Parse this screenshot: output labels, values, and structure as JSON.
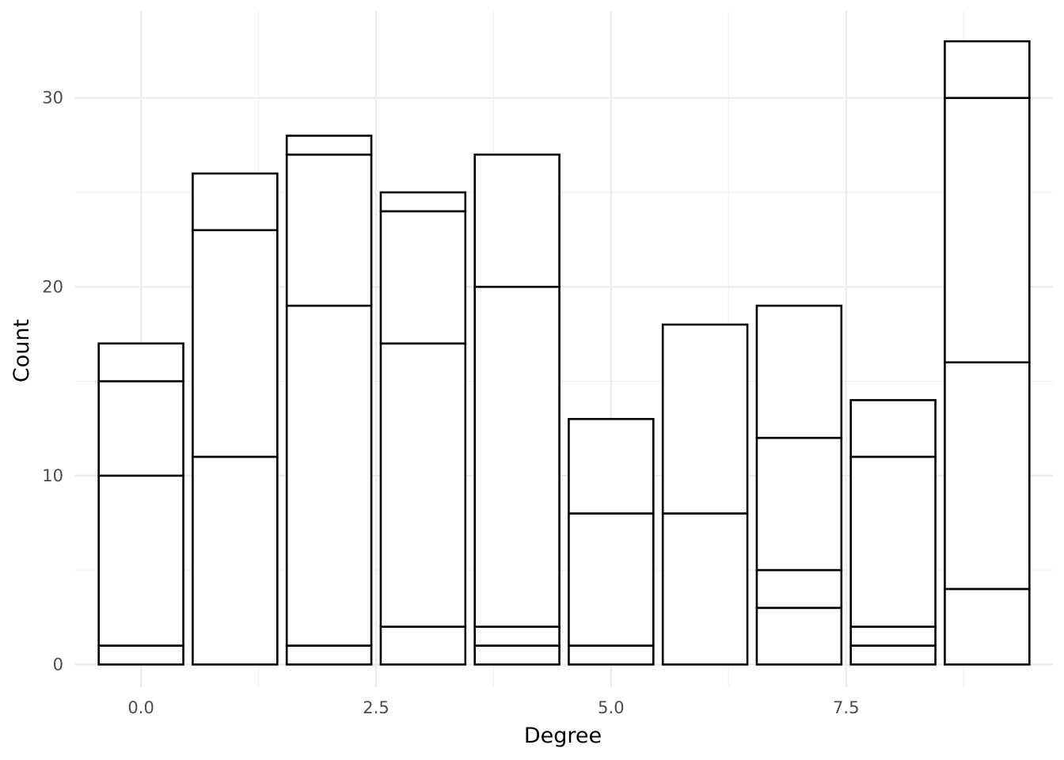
{
  "chart_data": {
    "type": "bar",
    "stacked": true,
    "xlabel": "Degree",
    "ylabel": "Count",
    "xlim": [
      -0.7,
      9.7
    ],
    "ylim": [
      -1.2,
      34.6
    ],
    "x_ticks": [
      0.0,
      2.5,
      5.0,
      7.5
    ],
    "x_tick_labels": [
      "0.0",
      "2.5",
      "5.0",
      "7.5"
    ],
    "y_ticks": [
      0,
      10,
      20,
      30
    ],
    "y_tick_labels": [
      "0",
      "10",
      "20",
      "30"
    ],
    "grid": true,
    "bar_fill": "#ffffff",
    "bar_outline": "#000000",
    "bars": [
      {
        "x": 0,
        "segments": [
          1,
          9,
          5,
          2
        ],
        "total": 17
      },
      {
        "x": 1,
        "segments": [
          11,
          12,
          3
        ],
        "total": 26
      },
      {
        "x": 2,
        "segments": [
          1,
          18,
          8,
          1
        ],
        "total": 28
      },
      {
        "x": 3,
        "segments": [
          2,
          15,
          7,
          1
        ],
        "total": 25
      },
      {
        "x": 4,
        "segments": [
          1,
          1,
          18,
          7
        ],
        "total": 27
      },
      {
        "x": 5,
        "segments": [
          1,
          7,
          5
        ],
        "total": 13
      },
      {
        "x": 6,
        "segments": [
          8,
          10
        ],
        "total": 18
      },
      {
        "x": 7,
        "segments": [
          3,
          2,
          7,
          7
        ],
        "total": 19
      },
      {
        "x": 8,
        "segments": [
          1,
          1,
          9,
          3
        ],
        "total": 14
      },
      {
        "x": 9,
        "segments": [
          4,
          12,
          14,
          3
        ],
        "total": 33
      }
    ]
  }
}
